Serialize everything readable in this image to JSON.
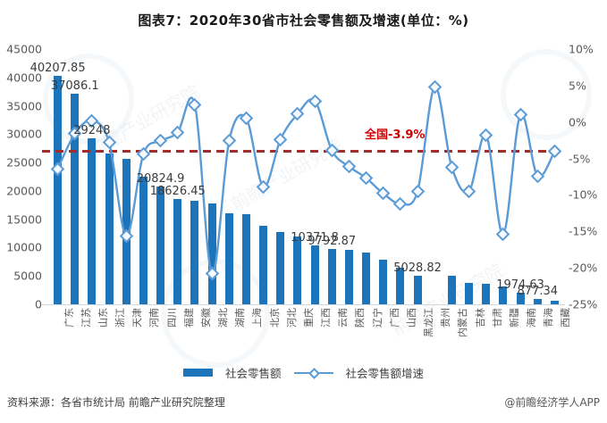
{
  "title": "图表7：2020年30省市社会零售额及增速(单位：%)",
  "chart_data": {
    "type": "bar+line",
    "categories": [
      "广东",
      "江苏",
      "山东",
      "浙江",
      "天津",
      "河南",
      "四川",
      "福建",
      "安徽",
      "湖北",
      "湖南",
      "上海",
      "北京",
      "河北",
      "重庆",
      "江西",
      "云南",
      "陕西",
      "辽宁",
      "广西",
      "山西",
      "黑龙江",
      "贵州",
      "内蒙古",
      "吉林",
      "甘肃",
      "新疆",
      "海南",
      "青海",
      "西藏"
    ],
    "series": [
      {
        "name": "社会零售额",
        "type": "bar",
        "unit": "亿元",
        "axis": "left",
        "values": [
          40207.85,
          37086.1,
          29248,
          26629.7,
          25700,
          22502.8,
          20824.9,
          18626.45,
          18300,
          17850,
          16100,
          15932,
          13900,
          12800,
          11880,
          10371.8,
          9792.87,
          9650,
          9100,
          7800,
          6500,
          5028.82,
          null,
          5000,
          3800,
          3650,
          3130,
          1974.63,
          877.34,
          700
        ]
      },
      {
        "name": "社会零售额增速",
        "type": "line",
        "unit": "%",
        "axis": "right",
        "values": [
          -6.4,
          -1.6,
          0.2,
          -2.8,
          -15.6,
          -4.4,
          -2.6,
          -1.4,
          2.4,
          -20.8,
          -2.6,
          0.5,
          -8.9,
          -2.4,
          1.1,
          2.9,
          -3.9,
          -6.1,
          -7.7,
          -9.8,
          -11.2,
          -9.5,
          4.8,
          -6.2,
          -9.5,
          -1.8,
          -15.4,
          1.0,
          -7.4,
          -4.0
        ]
      }
    ],
    "bar_point_labels": [
      "40207.85",
      "37086.1",
      "29248",
      null,
      null,
      null,
      "20824.9",
      "18626.45",
      null,
      null,
      null,
      null,
      null,
      null,
      null,
      "10371.8",
      "9792.87",
      null,
      null,
      null,
      null,
      "5028.82",
      null,
      null,
      null,
      null,
      null,
      "1974.63",
      "877.34",
      null
    ],
    "left_axis": {
      "min": 0,
      "max": 45000,
      "ticks": [
        "45000",
        "40000",
        "35000",
        "30000",
        "25000",
        "20000",
        "15000",
        "10000",
        "5000",
        "0"
      ]
    },
    "right_axis": {
      "min": -25,
      "max": 10,
      "ticks": [
        "10%",
        "5%",
        "0%",
        "-5%",
        "-10%",
        "-15%",
        "-20%",
        "-25%"
      ]
    },
    "national_line": {
      "label": "全国-3.9%",
      "value": -3.9
    },
    "legend": [
      "社会零售额",
      "社会零售额增速"
    ],
    "colors": {
      "bar": "#1C74BB",
      "line": "#5B9BD5",
      "dash": "#A02C2C",
      "national_label": "#CC0000"
    },
    "grid": false,
    "legend_position": "bottom-center"
  },
  "footer": {
    "source": "资料来源：各省市统计局 前瞻产业研究院整理",
    "branding": "@前瞻经济学人APP"
  },
  "watermark": {
    "text": "前瞻产业研究院"
  }
}
